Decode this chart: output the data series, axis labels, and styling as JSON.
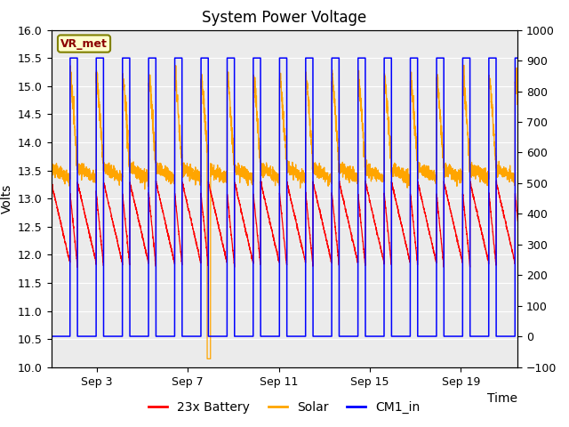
{
  "title": "System Power Voltage",
  "xlabel": "Time",
  "ylabel_left": "Volts",
  "ylabel_right": "",
  "ylim_left": [
    10.0,
    16.0
  ],
  "ylim_right": [
    -100,
    1000
  ],
  "yticks_left": [
    10.0,
    10.5,
    11.0,
    11.5,
    12.0,
    12.5,
    13.0,
    13.5,
    14.0,
    14.5,
    15.0,
    15.5,
    16.0
  ],
  "yticks_right": [
    -100,
    0,
    100,
    200,
    300,
    400,
    500,
    600,
    700,
    800,
    900,
    1000
  ],
  "xtick_labels": [
    "Sep 3",
    "Sep 7",
    "Sep 11",
    "Sep 15",
    "Sep 19"
  ],
  "xtick_positions": [
    2,
    6,
    10,
    14,
    18
  ],
  "xlim": [
    0,
    20.5
  ],
  "legend_labels": [
    "23x Battery",
    "Solar",
    "CM1_in"
  ],
  "legend_colors": [
    "red",
    "orange",
    "blue"
  ],
  "annotation_text": "VR_met",
  "plot_bg_color": "#ebebeb",
  "grid_color": "#ffffff",
  "title_fontsize": 12,
  "label_fontsize": 10,
  "tick_fontsize": 9,
  "period": 1.15,
  "duty_high": 0.28,
  "cm1_high": 15.5,
  "cm1_low": 10.55,
  "battery_start": 13.3,
  "battery_end_low": 11.85,
  "battery_pulse_peak": 13.1,
  "solar_spike": 15.1,
  "solar_plateau": 13.55,
  "solar_low_start": 13.5,
  "solar_low_end": 13.3,
  "n_points": 4000
}
